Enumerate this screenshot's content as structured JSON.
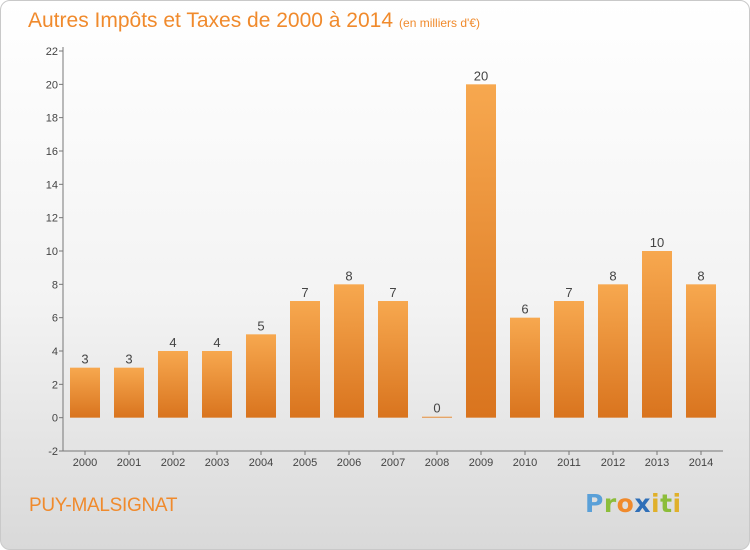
{
  "header": {
    "title": "Autres Impôts et Taxes de 2000 à 2014",
    "subtitle": "(en milliers d'€)"
  },
  "footer": {
    "place": "PUY-MALSIGNAT",
    "logo_text": "Proxiti"
  },
  "colors": {
    "bar_light": "#f7a84f",
    "bar_dark": "#d9741e",
    "accent": "#f08a2c"
  },
  "chart_data": {
    "type": "bar",
    "categories": [
      "2000",
      "2001",
      "2002",
      "2003",
      "2004",
      "2005",
      "2006",
      "2007",
      "2008",
      "2009",
      "2010",
      "2011",
      "2012",
      "2013",
      "2014"
    ],
    "values": [
      3,
      3,
      4,
      4,
      5,
      7,
      8,
      7,
      0,
      20,
      6,
      7,
      8,
      10,
      8
    ],
    "title": "Autres Impôts et Taxes de 2000 à 2014",
    "subtitle": "(en milliers d'€)",
    "ylim": [
      -2,
      22
    ],
    "yticks": [
      -2,
      0,
      2,
      4,
      6,
      8,
      10,
      12,
      14,
      16,
      18,
      20,
      22
    ],
    "grid": false,
    "legend": "none"
  }
}
